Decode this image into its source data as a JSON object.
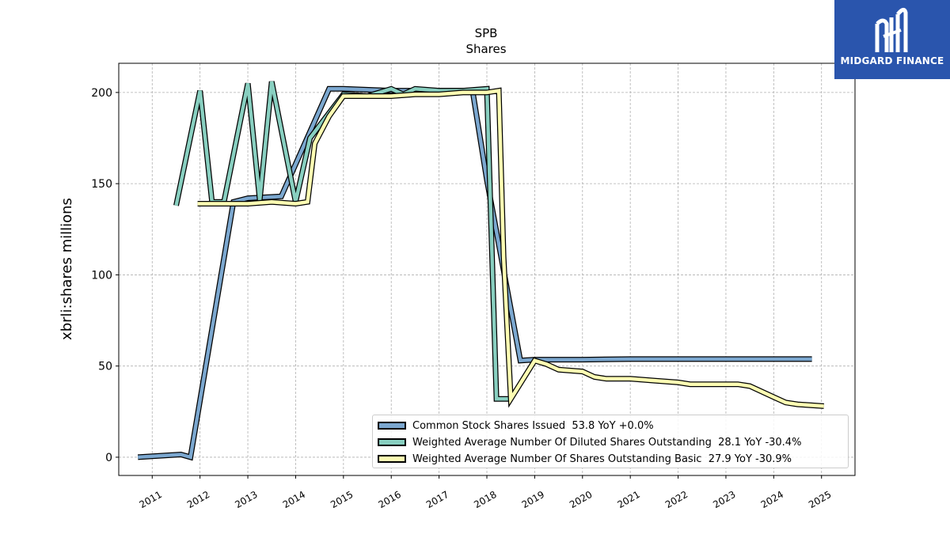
{
  "chart_data": {
    "type": "line",
    "title": "SPB",
    "subtitle": "Shares",
    "xlabel": "",
    "ylabel": "xbrli:shares millions",
    "x_ticks": [
      "2011",
      "2012",
      "2013",
      "2014",
      "2015",
      "2016",
      "2017",
      "2018",
      "2019",
      "2020",
      "2021",
      "2022",
      "2023",
      "2024",
      "2025"
    ],
    "y_ticks": [
      "0",
      "50",
      "100",
      "150",
      "200"
    ],
    "xlim": [
      2010.3,
      2025.7
    ],
    "ylim": [
      -10,
      216
    ],
    "grid": true,
    "legend_position": "lower-right",
    "series": [
      {
        "name": "Common Stock Shares Issued",
        "legend": "Common Stock Shares Issued  53.8 YoY +0.0%",
        "color": "#7ba7cf",
        "x": [
          2010.7,
          2011.6,
          2011.8,
          2012.7,
          2013.0,
          2013.7,
          2014.7,
          2015.0,
          2016.0,
          2017.0,
          2017.7,
          2018.0,
          2018.7,
          2019.0,
          2020.0,
          2021.0,
          2022.0,
          2023.0,
          2024.0,
          2024.8
        ],
        "values": [
          0,
          1.5,
          0,
          140,
          142,
          143,
          202,
          202,
          201,
          201,
          201,
          152,
          53,
          53.5,
          53.5,
          53.8,
          53.8,
          53.8,
          53.8,
          53.8
        ]
      },
      {
        "name": "Weighted Average Number Of Diluted Shares Outstanding",
        "legend": "Weighted Average Number Of Diluted Shares Outstanding  28.1 YoY -30.4%",
        "color": "#88cfc0",
        "x": [
          2011.5,
          2012.0,
          2012.25,
          2012.5,
          2013.0,
          2013.25,
          2013.5,
          2014.0,
          2014.3,
          2015.0,
          2015.5,
          2016.0,
          2016.25,
          2016.5,
          2017.0,
          2017.5,
          2018.0,
          2018.2,
          2018.35,
          2018.5
        ],
        "values": [
          138,
          201,
          140,
          140,
          205,
          141,
          206,
          140,
          175,
          199,
          198,
          202,
          199,
          202,
          201,
          201,
          202,
          32,
          32,
          32
        ]
      },
      {
        "name": "Weighted Average Number Of Shares Outstanding Basic",
        "legend": "Weighted Average Number Of Shares Outstanding Basic  27.9 YoY -30.9%",
        "color": "#fdfdb3",
        "x": [
          2011.95,
          2012.5,
          2013.0,
          2013.5,
          2014.0,
          2014.25,
          2014.4,
          2014.7,
          2015.0,
          2015.5,
          2016.0,
          2016.5,
          2017.0,
          2017.5,
          2018.0,
          2018.25,
          2018.35,
          2018.5,
          2019.0,
          2019.25,
          2019.5,
          2020.0,
          2020.25,
          2020.5,
          2021.0,
          2021.5,
          2022.0,
          2022.25,
          2022.5,
          2023.0,
          2023.25,
          2023.5,
          2024.0,
          2024.25,
          2024.5,
          2025.05
        ],
        "values": [
          139,
          139,
          139,
          140,
          139,
          140,
          172,
          187,
          198,
          198,
          198,
          199,
          199,
          200,
          200,
          201,
          110,
          32,
          53,
          51,
          48,
          47,
          44,
          43,
          43,
          42,
          41,
          40,
          40,
          40,
          40,
          39,
          33,
          30,
          29,
          28
        ]
      }
    ]
  },
  "logo": {
    "text": "MIDGARD FINANCE"
  }
}
